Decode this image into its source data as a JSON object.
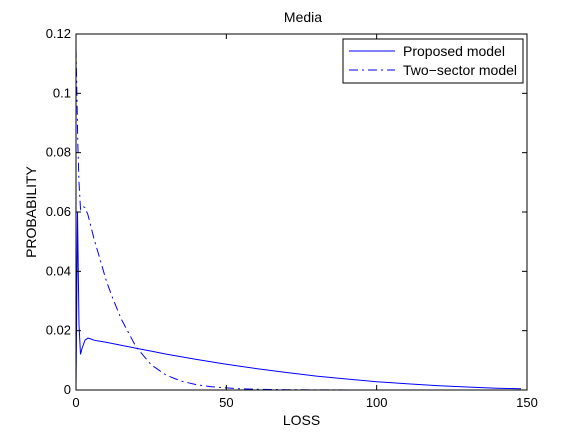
{
  "chart_data": {
    "type": "line",
    "title": "Media",
    "xlabel": "LOSS",
    "ylabel": "PROBABILITY",
    "xlim": [
      0,
      150
    ],
    "ylim": [
      0,
      0.12
    ],
    "x_ticks": [
      0,
      50,
      100,
      150
    ],
    "y_ticks": [
      0,
      0.02,
      0.04,
      0.06,
      0.08,
      0.1,
      0.12
    ],
    "x_tick_labels": [
      "0",
      "50",
      "100",
      "150"
    ],
    "y_tick_labels": [
      "0",
      "0.02",
      "0.04",
      "0.06",
      "0.08",
      "0.1",
      "0.12"
    ],
    "grid": false,
    "legend_position": "top-right",
    "series": [
      {
        "name": "Proposed model",
        "style": "solid",
        "color": "#0000ff",
        "x": [
          0,
          0.5,
          1,
          1.5,
          2,
          3,
          4,
          5,
          6,
          8,
          10,
          15,
          20,
          25,
          30,
          40,
          50,
          60,
          70,
          80,
          90,
          100,
          110,
          120,
          130,
          140,
          148
        ],
        "y": [
          0,
          0.06,
          0.022,
          0.012,
          0.014,
          0.0168,
          0.0175,
          0.0172,
          0.0168,
          0.0164,
          0.0161,
          0.0151,
          0.0141,
          0.0131,
          0.0121,
          0.0103,
          0.0087,
          0.0072,
          0.0059,
          0.0047,
          0.0037,
          0.0028,
          0.0021,
          0.0015,
          0.001,
          0.0006,
          0.0004
        ]
      },
      {
        "name": "Two−sector model",
        "style": "dashdot",
        "color": "#0000ff",
        "x": [
          0,
          0.3,
          0.6,
          1,
          1.5,
          2,
          3,
          4,
          5,
          6,
          8,
          10,
          12,
          15,
          20,
          25,
          30,
          35,
          40,
          45,
          50,
          55,
          60,
          70,
          80,
          100,
          120,
          148
        ],
        "y": [
          0.115,
          0.1,
          0.083,
          0.07,
          0.061,
          0.062,
          0.0615,
          0.059,
          0.055,
          0.051,
          0.044,
          0.037,
          0.0315,
          0.024,
          0.0145,
          0.0085,
          0.005,
          0.003,
          0.0018,
          0.0011,
          0.0007,
          0.0004,
          0.00025,
          0.0001,
          4e-05,
          0,
          0,
          0
        ]
      }
    ]
  }
}
